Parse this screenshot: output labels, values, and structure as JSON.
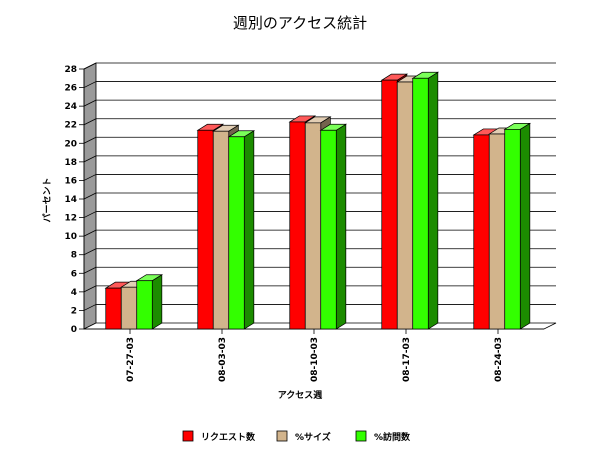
{
  "chart_data": {
    "type": "bar",
    "title": "週別のアクセス統計",
    "xlabel": "アクセス週",
    "ylabel": "パーセント",
    "categories": [
      "07-27-03",
      "08-03-03",
      "08-10-03",
      "08-17-03",
      "08-24-03"
    ],
    "series": [
      {
        "name": "リクエスト数",
        "color": "#ff0000",
        "values": [
          4.4,
          21.4,
          22.3,
          26.8,
          20.9
        ]
      },
      {
        "name": "%サイズ",
        "color": "#d2b48c",
        "values": [
          4.5,
          21.3,
          22.2,
          26.6,
          21.0
        ]
      },
      {
        "name": "%訪問数",
        "color": "#33ff00",
        "values": [
          5.2,
          20.7,
          21.4,
          27.0,
          21.5
        ]
      }
    ],
    "ylim": [
      0,
      28
    ],
    "yticks": [
      0,
      2,
      4,
      6,
      8,
      10,
      12,
      14,
      16,
      18,
      20,
      22,
      24,
      26,
      28
    ],
    "grid": true,
    "legend": "bottom"
  }
}
